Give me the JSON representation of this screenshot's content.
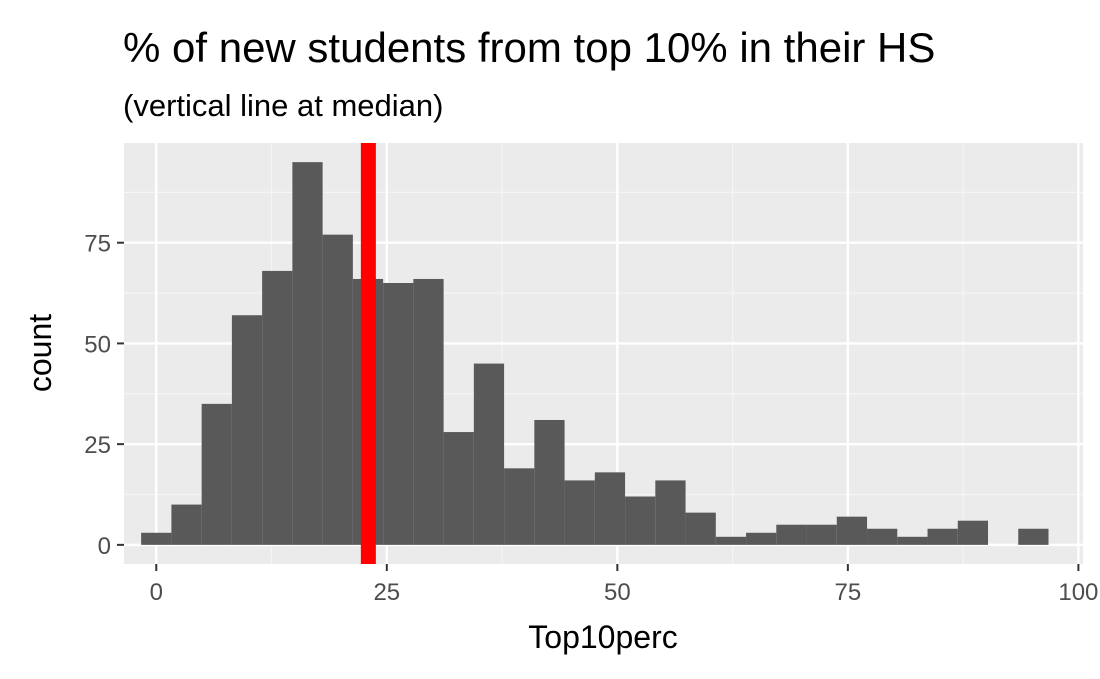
{
  "chart_data": {
    "type": "bar",
    "title": "% of new students from top 10% in their HS",
    "subtitle": "(vertical line at median)",
    "xlabel": "Top10perc",
    "ylabel": "count",
    "xlim": [
      -3.5,
      100.5
    ],
    "ylim": [
      -4.75,
      99.75
    ],
    "x_ticks": [
      0,
      25,
      50,
      75,
      100
    ],
    "x_tick_labels": [
      "0",
      "25",
      "50",
      "75",
      "100"
    ],
    "y_ticks": [
      0,
      25,
      50,
      75
    ],
    "y_tick_labels": [
      "0",
      "25",
      "50",
      "75"
    ],
    "bin_width": 3.28,
    "bins": [
      {
        "x_start": -1.64,
        "x_end": 1.64,
        "count": 3
      },
      {
        "x_start": 1.64,
        "x_end": 4.92,
        "count": 10
      },
      {
        "x_start": 4.92,
        "x_end": 8.2,
        "count": 35
      },
      {
        "x_start": 8.2,
        "x_end": 11.48,
        "count": 57
      },
      {
        "x_start": 11.48,
        "x_end": 14.76,
        "count": 68
      },
      {
        "x_start": 14.76,
        "x_end": 18.04,
        "count": 95
      },
      {
        "x_start": 18.04,
        "x_end": 21.32,
        "count": 77
      },
      {
        "x_start": 21.32,
        "x_end": 24.6,
        "count": 66
      },
      {
        "x_start": 24.6,
        "x_end": 27.88,
        "count": 65
      },
      {
        "x_start": 27.88,
        "x_end": 31.16,
        "count": 66
      },
      {
        "x_start": 31.16,
        "x_end": 34.44,
        "count": 28
      },
      {
        "x_start": 34.44,
        "x_end": 37.72,
        "count": 45
      },
      {
        "x_start": 37.72,
        "x_end": 41.0,
        "count": 19
      },
      {
        "x_start": 41.0,
        "x_end": 44.28,
        "count": 31
      },
      {
        "x_start": 44.28,
        "x_end": 47.56,
        "count": 16
      },
      {
        "x_start": 47.56,
        "x_end": 50.84,
        "count": 18
      },
      {
        "x_start": 50.84,
        "x_end": 54.12,
        "count": 12
      },
      {
        "x_start": 54.12,
        "x_end": 57.4,
        "count": 16
      },
      {
        "x_start": 57.4,
        "x_end": 60.68,
        "count": 8
      },
      {
        "x_start": 60.68,
        "x_end": 63.96,
        "count": 2
      },
      {
        "x_start": 63.96,
        "x_end": 67.24,
        "count": 3
      },
      {
        "x_start": 67.24,
        "x_end": 70.52,
        "count": 5
      },
      {
        "x_start": 70.52,
        "x_end": 73.8,
        "count": 5
      },
      {
        "x_start": 73.8,
        "x_end": 77.08,
        "count": 7
      },
      {
        "x_start": 77.08,
        "x_end": 80.36,
        "count": 4
      },
      {
        "x_start": 80.36,
        "x_end": 83.64,
        "count": 2
      },
      {
        "x_start": 83.64,
        "x_end": 86.92,
        "count": 4
      },
      {
        "x_start": 86.92,
        "x_end": 90.2,
        "count": 6
      },
      {
        "x_start": 90.2,
        "x_end": 93.48,
        "count": 0
      },
      {
        "x_start": 93.48,
        "x_end": 96.76,
        "count": 4
      }
    ],
    "median_line_x": 23,
    "colors": {
      "bars": "#595959",
      "median_line": "#ff0000",
      "panel_background": "#ebebeb",
      "grid_major": "#ffffff",
      "grid_minor": "#f5f5f5",
      "tick_text": "#4d4d4d",
      "tick_mark": "#333333"
    },
    "grid": true,
    "legend": "none"
  }
}
